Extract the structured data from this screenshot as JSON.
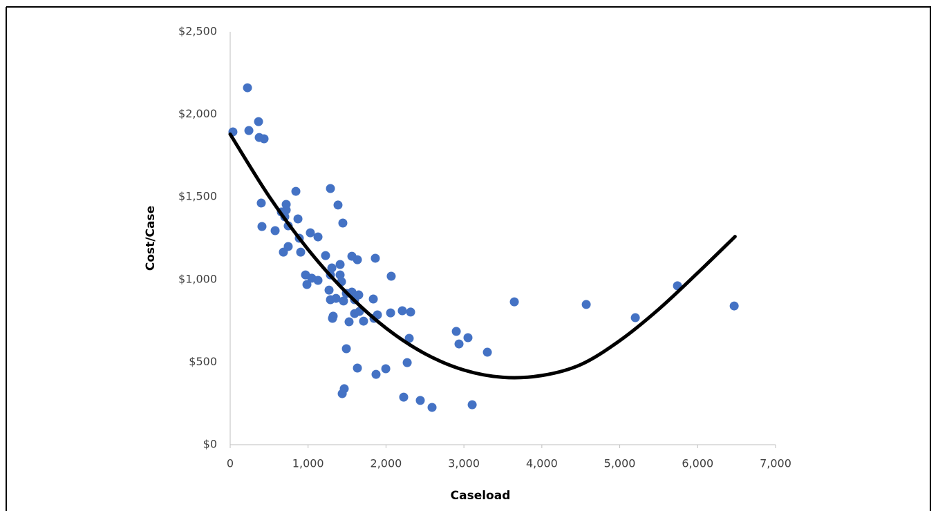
{
  "chart_data": {
    "type": "scatter",
    "xlabel": "Caseload",
    "ylabel": "Cost/Case",
    "x": [
      35,
      222,
      240,
      364,
      373,
      435,
      399,
      408,
      577,
      657,
      719,
      719,
      701,
      745,
      683,
      745,
      843,
      870,
      887,
      905,
      1029,
      1127,
      967,
      985,
      1047,
      1127,
      1224,
      1287,
      1384,
      1446,
      1269,
      1287,
      1305,
      1287,
      1358,
      1322,
      1313,
      1411,
      1411,
      1429,
      1455,
      1491,
      1562,
      1633,
      1562,
      1597,
      1650,
      1597,
      1659,
      1526,
      1712,
      1863,
      1837,
      1846,
      1890,
      2067,
      2059,
      2209,
      2316,
      2298,
      2272,
      1491,
      1633,
      1872,
      1997,
      1464,
      1438,
      2227,
      2440,
      2591,
      2902,
      2937,
      3052,
      3106,
      3301,
      3647,
      4570,
      5200,
      5741,
      6469
    ],
    "values": [
      1894,
      2161,
      1902,
      1956,
      1860,
      1852,
      1463,
      1321,
      1296,
      1409,
      1455,
      1421,
      1380,
      1325,
      1166,
      1200,
      1534,
      1367,
      1250,
      1166,
      1283,
      1258,
      1028,
      970,
      1008,
      995,
      1145,
      1551,
      1451,
      1342,
      936,
      1028,
      1070,
      878,
      886,
      778,
      765,
      1091,
      1028,
      987,
      870,
      916,
      1141,
      1120,
      924,
      878,
      907,
      794,
      807,
      744,
      748,
      1129,
      882,
      765,
      786,
      1020,
      798,
      811,
      803,
      644,
      497,
      581,
      464,
      426,
      460,
      339,
      309,
      288,
      268,
      226,
      686,
      610,
      648,
      242,
      560,
      865,
      849,
      769,
      962,
      840
    ],
    "color": "#4472c4",
    "trendline": {
      "x": [
        0,
        500,
        1000,
        1500,
        2000,
        2500,
        3000,
        3500,
        4000,
        4500,
        5000,
        5500,
        6000,
        6480
      ],
      "values": [
        1880,
        1503,
        1182,
        917,
        706,
        551,
        452,
        408,
        419,
        485,
        630,
        820,
        1040,
        1260
      ],
      "color": "#000000"
    },
    "xlim": [
      0,
      7000
    ],
    "ylim": [
      0,
      2500
    ],
    "xticks": [
      0,
      {
        "value": 1000,
        "label": "1,000"
      },
      {
        "value": 2000,
        "label": "2,000"
      },
      {
        "value": 3000,
        "label": "3,000"
      },
      {
        "value": 4000,
        "label": "4,000"
      },
      {
        "value": 5000,
        "label": "5,000"
      },
      {
        "value": 6000,
        "label": "6,000"
      },
      {
        "value": 7000,
        "label": "7,000"
      }
    ],
    "yticks": [
      {
        "value": 0,
        "label": "$0"
      },
      {
        "value": 500,
        "label": "$500"
      },
      {
        "value": 1000,
        "label": "$1,000"
      },
      {
        "value": 1500,
        "label": "$1,500"
      },
      {
        "value": 2000,
        "label": "$2,000"
      },
      {
        "value": 2500,
        "label": "$2,500"
      }
    ],
    "grid": false
  }
}
